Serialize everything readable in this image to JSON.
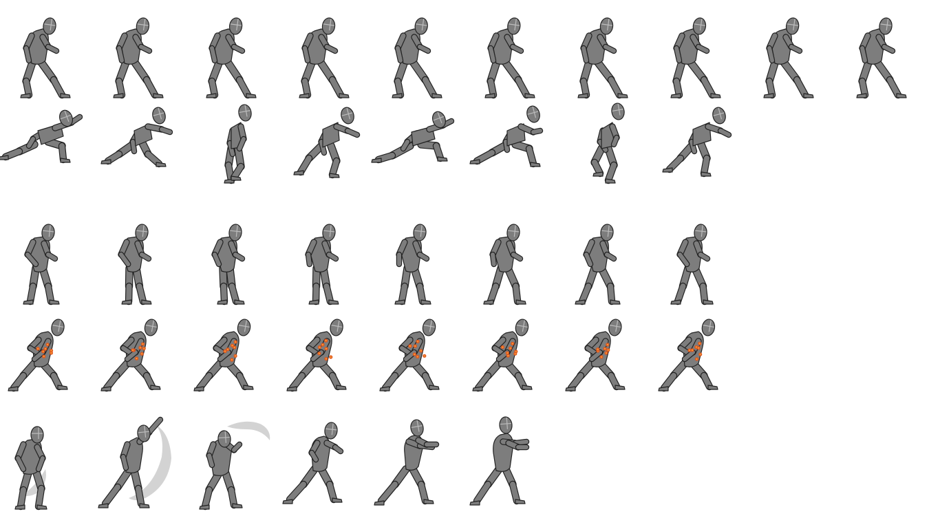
{
  "sprite_sheet": {
    "colors": {
      "background": "#ffffff",
      "body_fill": "#7d7d7d",
      "body_shade": "#6a6a6a",
      "outline": "#222222",
      "helmet_line": "#bdbdbd",
      "effect_fill": "#d3d3d3",
      "spark_fill": "#e2571e",
      "spark_core": "#f3a23a"
    },
    "rows": [
      {
        "name": "idle-stance",
        "frame_count": 10,
        "pose": "stance",
        "effect": "none"
      },
      {
        "name": "sprint-run",
        "frame_count": 8,
        "pose": "run",
        "effect": "none"
      },
      {
        "name": "walk-cycle",
        "frame_count": 8,
        "pose": "walk",
        "effect": "none"
      },
      {
        "name": "charge-spark",
        "frame_count": 8,
        "pose": "charge",
        "effect": "sparks"
      },
      {
        "name": "strike-attack",
        "frame_count": 6,
        "pose": "attack",
        "effect": "slash"
      }
    ]
  }
}
